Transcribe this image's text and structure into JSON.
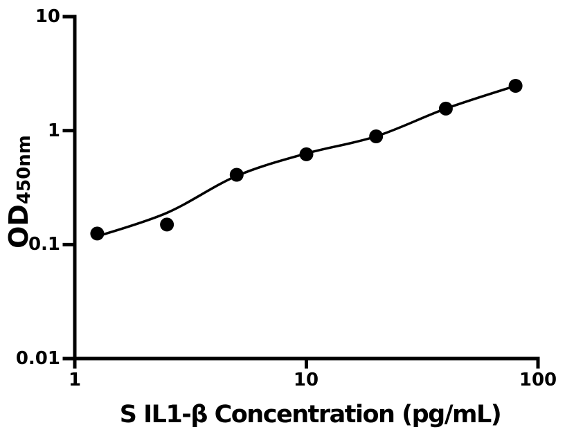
{
  "page": {
    "background": "#ffffff"
  },
  "chart_data": {
    "type": "scatter",
    "title": "",
    "xlabel": "S IL1-β Concentration (pg/mL)",
    "ylabel": "OD450nm",
    "ylabel_main": "OD",
    "ylabel_sub": "450nm",
    "x_scale": "log",
    "y_scale": "log",
    "xlim": [
      1,
      100
    ],
    "ylim": [
      0.01,
      10
    ],
    "grid": false,
    "legend": false,
    "ink_color": "#000000",
    "x_tick_values": [
      1,
      10,
      100
    ],
    "x_tick_labels": [
      "1",
      "10",
      "100"
    ],
    "y_tick_values": [
      10,
      1,
      0.1,
      0.01
    ],
    "y_tick_labels": [
      "10",
      "1",
      "0.1",
      "0.01"
    ],
    "series": [
      {
        "name": "ELISA standard data points",
        "marker": "filled-circle",
        "color": "#000000",
        "x": [
          1.25,
          2.5,
          5,
          10,
          20,
          40,
          80
        ],
        "y": [
          0.125,
          0.15,
          0.41,
          0.62,
          0.89,
          1.56,
          2.47
        ]
      }
    ],
    "fit_curve": {
      "name": "standard curve fit line",
      "color": "#000000",
      "x": [
        1.25,
        2.5,
        5,
        10,
        20,
        40,
        80
      ],
      "y": [
        0.118,
        0.19,
        0.4,
        0.63,
        0.89,
        1.56,
        2.47
      ]
    }
  }
}
